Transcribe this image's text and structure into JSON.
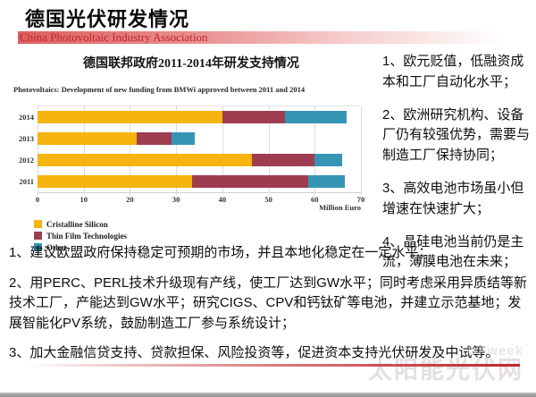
{
  "page": {
    "title": "德国光伏研发情况",
    "banner": "China Photovoltaic Industry Association"
  },
  "chart": {
    "title": "德国联邦政府2011-2014年研发支持情况",
    "subtitle": "Photovoltaics: Development of new funding from BMWi approved between 2011 and 2014"
  },
  "chart_data": {
    "type": "bar",
    "orientation": "horizontal",
    "stacked": true,
    "categories": [
      "2014",
      "2013",
      "2012",
      "2011"
    ],
    "series": [
      {
        "name": "Cristalline Silicon",
        "color": "#F5B40E",
        "values": [
          40,
          21.5,
          46.5,
          33.5
        ]
      },
      {
        "name": "Thin Film Technologies",
        "color": "#9E3D50",
        "values": [
          13.5,
          7.5,
          13.5,
          25
        ]
      },
      {
        "name": "Other",
        "color": "#3595B5",
        "values": [
          13.5,
          5,
          6,
          8
        ]
      }
    ],
    "totals": [
      67,
      34,
      66,
      66.5
    ],
    "xlabel": "Million Euro",
    "xlim": [
      0,
      70
    ],
    "xticks": [
      0,
      10,
      20,
      30,
      40,
      50,
      60,
      70
    ],
    "grid": true,
    "legend_position": "bottom-left"
  },
  "right_notes": [
    "1、欧元贬值，低融资成本和工厂自动化水平；",
    "2、欧洲研究机构、设备厂仍有较强优势，需要与制造工厂保持协同；",
    "3、高效电池市场虽小但增速在快速扩大；",
    "4、晶硅电池当前仍是主流，薄膜电池在未来；"
  ],
  "bottom_notes": [
    "1、建议欧盟政府保持稳定可预期的市场，并且本地化稳定在一定水平；",
    "2、用PERC、PERL技术升级现有产线，使工厂达到GW水平；同时考虑采用异质结等新技术工厂，产能达到GW水平；研究CIGS、CPV和钙钛矿等电池，并建立示范基地；发展智能化PV系统，鼓励制造工厂参与系统设计；",
    "3、加大金融信贷支持、贷款担保、风险投资等，促进资本支持光伏研发及中试等。"
  ],
  "watermark": {
    "brand": "OFweek",
    "text": "太阳能光伏网"
  },
  "colors": {
    "banner_red": "#dd5f5f",
    "banner_text": "#c3262b",
    "accent_line": "#c0272d",
    "gridline": "#dcdcdc"
  }
}
